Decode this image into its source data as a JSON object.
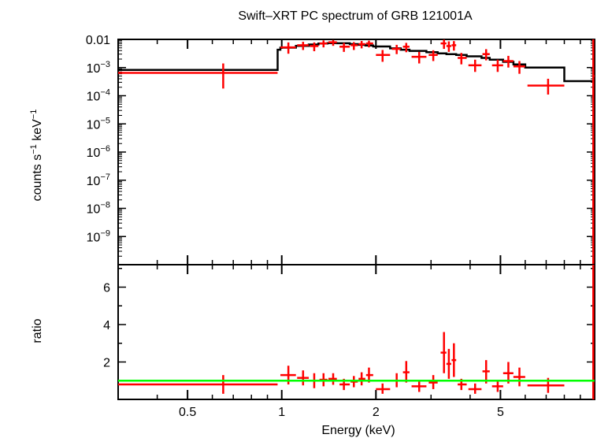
{
  "chart_data": {
    "type": "scatter",
    "title": "Swift–XRT PC spectrum of GRB 121001A",
    "xlabel": "Energy (keV)",
    "x_scale": "log",
    "xlim": [
      0.3,
      10
    ],
    "x_ticks": [
      {
        "value": 0.5,
        "label": "0.5"
      },
      {
        "value": 1,
        "label": "1"
      },
      {
        "value": 2,
        "label": "2"
      },
      {
        "value": 5,
        "label": "5"
      }
    ],
    "colors": {
      "data": "#ff0000",
      "model": "#000000",
      "ratio_line": "#00ff00"
    },
    "panels": [
      {
        "name": "spectrum",
        "ylabel_base": "counts s",
        "ylabel_exp1": "−1",
        "ylabel_mid": " keV",
        "ylabel_exp2": "−1",
        "y_scale": "log",
        "ylim": [
          1e-10,
          0.01
        ],
        "y_ticks": [
          {
            "value": 0.01,
            "base": "0.01",
            "exp": ""
          },
          {
            "value": 0.001,
            "base": "10",
            "exp": "−3"
          },
          {
            "value": 0.0001,
            "base": "10",
            "exp": "−4"
          },
          {
            "value": 1e-05,
            "base": "10",
            "exp": "−5"
          },
          {
            "value": 1e-06,
            "base": "10",
            "exp": "−6"
          },
          {
            "value": 1e-07,
            "base": "10",
            "exp": "−7"
          },
          {
            "value": 1e-08,
            "base": "10",
            "exp": "−8"
          },
          {
            "value": 1e-09,
            "base": "10",
            "exp": "−9"
          }
        ],
        "data": [
          {
            "x": 0.65,
            "xlo": 0.3,
            "xhi": 0.97,
            "y": 0.00065,
            "ylo": 0.00018,
            "yhi": 0.0014
          },
          {
            "x": 1.05,
            "xlo": 0.99,
            "xhi": 1.11,
            "y": 0.0052,
            "ylo": 0.0031,
            "yhi": 0.0078
          },
          {
            "x": 1.17,
            "xlo": 1.12,
            "xhi": 1.22,
            "y": 0.0062,
            "ylo": 0.0042,
            "yhi": 0.0082
          },
          {
            "x": 1.27,
            "xlo": 1.23,
            "xhi": 1.31,
            "y": 0.0058,
            "ylo": 0.0038,
            "yhi": 0.0078
          },
          {
            "x": 1.36,
            "xlo": 1.32,
            "xhi": 1.4,
            "y": 0.0072,
            "ylo": 0.0052,
            "yhi": 0.0092
          },
          {
            "x": 1.46,
            "xlo": 1.41,
            "xhi": 1.5,
            "y": 0.0079,
            "ylo": 0.0059,
            "yhi": 0.0095
          },
          {
            "x": 1.58,
            "xlo": 1.53,
            "xhi": 1.65,
            "y": 0.0055,
            "ylo": 0.0036,
            "yhi": 0.0075
          },
          {
            "x": 1.7,
            "xlo": 1.66,
            "xhi": 1.75,
            "y": 0.0062,
            "ylo": 0.0042,
            "yhi": 0.008
          },
          {
            "x": 1.8,
            "xlo": 1.76,
            "xhi": 1.85,
            "y": 0.0068,
            "ylo": 0.0048,
            "yhi": 0.0088
          },
          {
            "x": 1.9,
            "xlo": 1.86,
            "xhi": 1.96,
            "y": 0.0072,
            "ylo": 0.0052,
            "yhi": 0.009
          },
          {
            "x": 2.1,
            "xlo": 2.0,
            "xhi": 2.22,
            "y": 0.0028,
            "ylo": 0.0016,
            "yhi": 0.0042
          },
          {
            "x": 2.33,
            "xlo": 2.25,
            "xhi": 2.4,
            "y": 0.0046,
            "ylo": 0.003,
            "yhi": 0.0064
          },
          {
            "x": 2.5,
            "xlo": 2.44,
            "xhi": 2.56,
            "y": 0.0055,
            "ylo": 0.0035,
            "yhi": 0.0075
          },
          {
            "x": 2.75,
            "xlo": 2.6,
            "xhi": 2.9,
            "y": 0.0024,
            "ylo": 0.0014,
            "yhi": 0.0036
          },
          {
            "x": 3.05,
            "xlo": 2.95,
            "xhi": 3.15,
            "y": 0.0028,
            "ylo": 0.0017,
            "yhi": 0.0041
          },
          {
            "x": 3.3,
            "xlo": 3.22,
            "xhi": 3.36,
            "y": 0.0072,
            "ylo": 0.0046,
            "yhi": 0.0098
          },
          {
            "x": 3.42,
            "xlo": 3.36,
            "xhi": 3.48,
            "y": 0.0058,
            "ylo": 0.0036,
            "yhi": 0.0085
          },
          {
            "x": 3.55,
            "xlo": 3.49,
            "xhi": 3.61,
            "y": 0.0062,
            "ylo": 0.004,
            "yhi": 0.0087
          },
          {
            "x": 3.75,
            "xlo": 3.65,
            "xhi": 3.9,
            "y": 0.0022,
            "ylo": 0.0013,
            "yhi": 0.0033
          },
          {
            "x": 4.15,
            "xlo": 3.95,
            "xhi": 4.35,
            "y": 0.0012,
            "ylo": 0.0007,
            "yhi": 0.0019
          },
          {
            "x": 4.5,
            "xlo": 4.38,
            "xhi": 4.62,
            "y": 0.003,
            "ylo": 0.0018,
            "yhi": 0.0045
          },
          {
            "x": 4.9,
            "xlo": 4.7,
            "xhi": 5.1,
            "y": 0.0012,
            "ylo": 0.0007,
            "yhi": 0.0019
          },
          {
            "x": 5.3,
            "xlo": 5.1,
            "xhi": 5.5,
            "y": 0.0017,
            "ylo": 0.001,
            "yhi": 0.0026
          },
          {
            "x": 5.75,
            "xlo": 5.5,
            "xhi": 6.0,
            "y": 0.0011,
            "ylo": 0.0006,
            "yhi": 0.0017
          },
          {
            "x": 7.1,
            "xlo": 6.1,
            "xhi": 8.0,
            "y": 0.00023,
            "ylo": 0.00011,
            "yhi": 0.0004
          },
          {
            "x": 9.9,
            "xlo": 9.85,
            "xhi": 10.0,
            "y": 0.0005,
            "ylo": 1e-10,
            "yhi": 0.01
          }
        ],
        "model": {
          "edges": [
            0.3,
            0.97,
            0.99,
            1.11,
            1.22,
            1.31,
            1.4,
            1.5,
            1.65,
            1.75,
            1.85,
            1.96,
            2.22,
            2.4,
            2.56,
            2.9,
            3.15,
            3.36,
            3.61,
            3.9,
            4.35,
            4.62,
            5.1,
            5.5,
            6.0,
            8.0,
            10.0
          ],
          "values": [
            0.00082,
            0.0043,
            0.0051,
            0.0059,
            0.0066,
            0.0071,
            0.0074,
            0.0073,
            0.0068,
            0.0064,
            0.0061,
            0.0056,
            0.0048,
            0.0043,
            0.0039,
            0.0035,
            0.0032,
            0.003,
            0.0028,
            0.0025,
            0.0022,
            0.0019,
            0.0016,
            0.0013,
            0.001,
            0.00033
          ]
        }
      },
      {
        "name": "ratio",
        "ylabel": "ratio",
        "y_scale": "linear",
        "ylim": [
          0,
          7.2
        ],
        "y_ticks": [
          {
            "value": 2,
            "label": "2"
          },
          {
            "value": 4,
            "label": "4"
          },
          {
            "value": 6,
            "label": "6"
          }
        ],
        "reference_line": 1.0,
        "data": [
          {
            "x": 0.65,
            "xlo": 0.3,
            "xhi": 0.97,
            "y": 0.8,
            "ylo": 0.3,
            "yhi": 1.3
          },
          {
            "x": 1.05,
            "xlo": 0.99,
            "xhi": 1.11,
            "y": 1.3,
            "ylo": 0.8,
            "yhi": 1.8
          },
          {
            "x": 1.17,
            "xlo": 1.12,
            "xhi": 1.22,
            "y": 1.15,
            "ylo": 0.75,
            "yhi": 1.55
          },
          {
            "x": 1.27,
            "xlo": 1.23,
            "xhi": 1.31,
            "y": 1.0,
            "ylo": 0.6,
            "yhi": 1.4
          },
          {
            "x": 1.36,
            "xlo": 1.32,
            "xhi": 1.4,
            "y": 1.05,
            "ylo": 0.7,
            "yhi": 1.4
          },
          {
            "x": 1.46,
            "xlo": 1.41,
            "xhi": 1.5,
            "y": 1.1,
            "ylo": 0.78,
            "yhi": 1.4
          },
          {
            "x": 1.58,
            "xlo": 1.53,
            "xhi": 1.65,
            "y": 0.8,
            "ylo": 0.5,
            "yhi": 1.1
          },
          {
            "x": 1.7,
            "xlo": 1.66,
            "xhi": 1.75,
            "y": 0.95,
            "ylo": 0.65,
            "yhi": 1.25
          },
          {
            "x": 1.8,
            "xlo": 1.76,
            "xhi": 1.85,
            "y": 1.1,
            "ylo": 0.75,
            "yhi": 1.45
          },
          {
            "x": 1.9,
            "xlo": 1.86,
            "xhi": 1.96,
            "y": 1.3,
            "ylo": 0.9,
            "yhi": 1.7
          },
          {
            "x": 2.1,
            "xlo": 2.0,
            "xhi": 2.22,
            "y": 0.55,
            "ylo": 0.3,
            "yhi": 0.85
          },
          {
            "x": 2.33,
            "xlo": 2.25,
            "xhi": 2.4,
            "y": 1.0,
            "ylo": 0.65,
            "yhi": 1.4
          },
          {
            "x": 2.5,
            "xlo": 2.44,
            "xhi": 2.56,
            "y": 1.45,
            "ylo": 0.9,
            "yhi": 2.05
          },
          {
            "x": 2.75,
            "xlo": 2.6,
            "xhi": 2.9,
            "y": 0.7,
            "ylo": 0.4,
            "yhi": 1.0
          },
          {
            "x": 3.05,
            "xlo": 2.95,
            "xhi": 3.15,
            "y": 0.9,
            "ylo": 0.55,
            "yhi": 1.3
          },
          {
            "x": 3.3,
            "xlo": 3.22,
            "xhi": 3.36,
            "y": 2.5,
            "ylo": 1.4,
            "yhi": 3.6
          },
          {
            "x": 3.42,
            "xlo": 3.36,
            "xhi": 3.48,
            "y": 1.9,
            "ylo": 1.1,
            "yhi": 2.7
          },
          {
            "x": 3.55,
            "xlo": 3.49,
            "xhi": 3.61,
            "y": 2.1,
            "ylo": 1.2,
            "yhi": 3.0
          },
          {
            "x": 3.75,
            "xlo": 3.65,
            "xhi": 3.9,
            "y": 0.8,
            "ylo": 0.5,
            "yhi": 1.1
          },
          {
            "x": 4.15,
            "xlo": 3.95,
            "xhi": 4.35,
            "y": 0.55,
            "ylo": 0.3,
            "yhi": 0.85
          },
          {
            "x": 4.5,
            "xlo": 4.38,
            "xhi": 4.62,
            "y": 1.5,
            "ylo": 0.85,
            "yhi": 2.1
          },
          {
            "x": 4.9,
            "xlo": 4.7,
            "xhi": 5.1,
            "y": 0.7,
            "ylo": 0.4,
            "yhi": 1.05
          },
          {
            "x": 5.3,
            "xlo": 5.1,
            "xhi": 5.5,
            "y": 1.4,
            "ylo": 0.85,
            "yhi": 2.0
          },
          {
            "x": 5.75,
            "xlo": 5.5,
            "xhi": 6.0,
            "y": 1.2,
            "ylo": 0.7,
            "yhi": 1.7
          },
          {
            "x": 7.1,
            "xlo": 6.1,
            "xhi": 8.0,
            "y": 0.75,
            "ylo": 0.35,
            "yhi": 1.15
          },
          {
            "x": 9.9,
            "xlo": 9.85,
            "xhi": 10.0,
            "y": 1.0,
            "ylo": 0.0,
            "yhi": 7.2
          }
        ]
      }
    ]
  }
}
